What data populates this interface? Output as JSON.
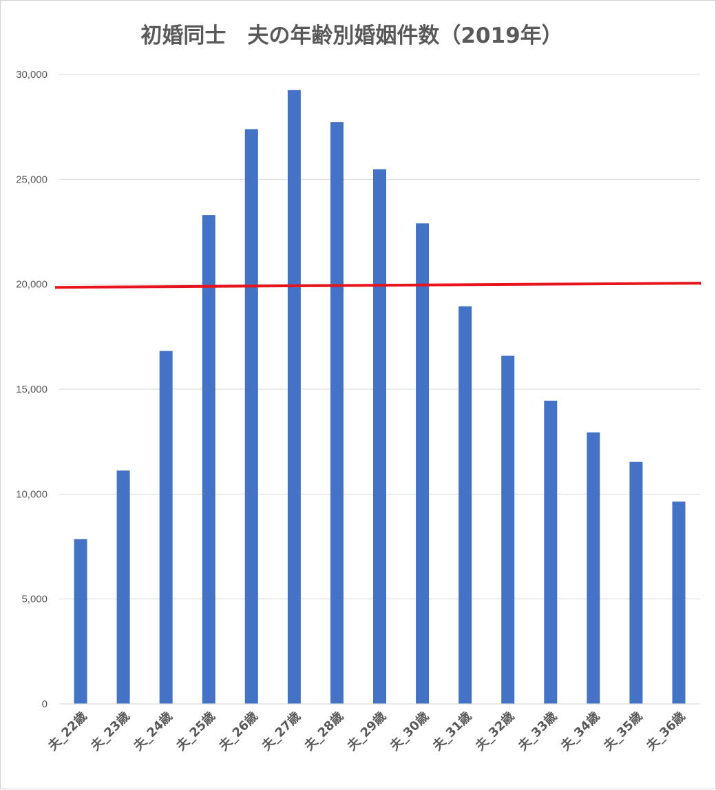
{
  "chart_data": {
    "type": "bar",
    "title": "初婚同士　夫の年齢別婚姻件数（2019年）",
    "xlabel": "",
    "ylabel": "",
    "categories": [
      "夫_22歳",
      "夫_23歳",
      "夫_24歳",
      "夫_25歳",
      "夫_26歳",
      "夫_27歳",
      "夫_28歳",
      "夫_29歳",
      "夫_30歳",
      "夫_31歳",
      "夫_32歳",
      "夫_33歳",
      "夫_34歳",
      "夫_35歳",
      "夫_36歳"
    ],
    "values": [
      7850,
      11120,
      16820,
      23300,
      27390,
      29250,
      27730,
      25480,
      22900,
      18950,
      16590,
      14450,
      12940,
      11530,
      9640
    ],
    "ylim": [
      0,
      30000
    ],
    "yticks": [
      0,
      5000,
      10000,
      15000,
      20000,
      25000,
      30000
    ],
    "ytick_labels": [
      "0",
      "5,000",
      "10,000",
      "15,000",
      "20,000",
      "25,000",
      "30,000"
    ],
    "grid": true,
    "legend": "none",
    "reference_line": {
      "y_start": 19850,
      "y_end": 20050,
      "color": "#e8141b"
    },
    "bar_color": "#4472c4",
    "gridline_color": "#d9d9d9",
    "text_color": "#595959"
  }
}
